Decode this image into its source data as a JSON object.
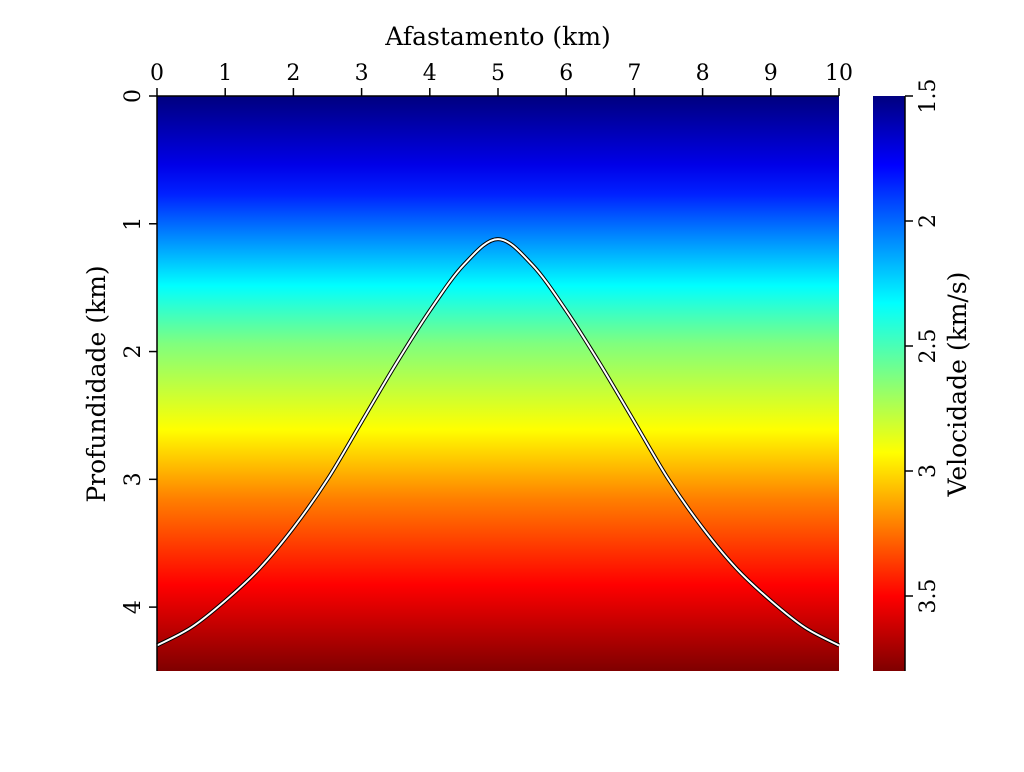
{
  "chart_data": {
    "type": "heatmap",
    "title": "",
    "xlabel": "Afastamento (km)",
    "ylabel": "Profundidade (km)",
    "xlim": [
      0,
      10
    ],
    "ylim": [
      0,
      4.5
    ],
    "x_ticks": [
      "0",
      "1",
      "2",
      "3",
      "4",
      "5",
      "6",
      "7",
      "8",
      "9",
      "10"
    ],
    "y_ticks": [
      "0",
      "1",
      "2",
      "3",
      "4"
    ],
    "x_axis_position": "top",
    "y_axis_inverted": true,
    "grid": false,
    "field": {
      "description_of_gradient": "velocity increases with depth",
      "depth_km": [
        0,
        4.5
      ],
      "velocity_km_s": [
        1.5,
        3.8
      ]
    },
    "colorbar": {
      "label": "Velocidade (km/s)",
      "range": [
        1.5,
        3.8
      ],
      "ticks": [
        "1.5",
        "2",
        "2.5",
        "3",
        "3.5"
      ],
      "position": "right",
      "colormap": [
        "#00007f",
        "#0000ff",
        "#00ffff",
        "#ffff00",
        "#ff0000",
        "#7f0000"
      ]
    },
    "series": [
      {
        "type": "line",
        "color": "#ffffff",
        "x": [
          0,
          0.5,
          1,
          1.5,
          2,
          2.5,
          3,
          3.5,
          4,
          4.5,
          5,
          5.5,
          6,
          6.5,
          7,
          7.5,
          8,
          8.5,
          9,
          9.5,
          10
        ],
        "y": [
          4.3,
          4.16,
          3.95,
          3.7,
          3.38,
          3.0,
          2.55,
          2.1,
          1.68,
          1.32,
          1.12,
          1.32,
          1.68,
          2.1,
          2.55,
          3.0,
          3.38,
          3.7,
          3.95,
          4.16,
          4.3
        ]
      }
    ]
  }
}
